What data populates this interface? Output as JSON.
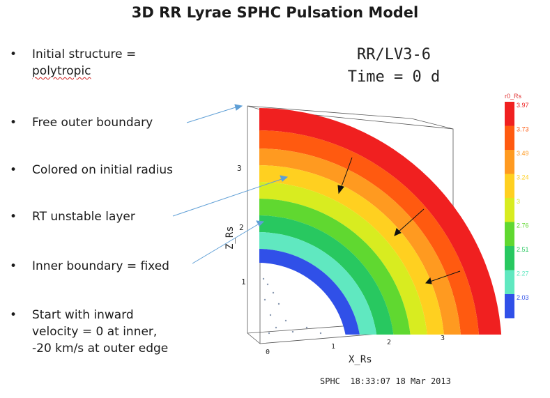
{
  "slide": {
    "title": "3D RR Lyrae SPHC Pulsation Model",
    "bullets": [
      {
        "marker": "•",
        "text": "Initial structure = ",
        "text_underlined": "polytropic"
      },
      {
        "marker": "•",
        "text": "Free outer boundary"
      },
      {
        "marker": "•",
        "text": "Colored on initial radius"
      },
      {
        "marker": "•",
        "text": "RT unstable layer"
      },
      {
        "marker": "•",
        "text": "Inner boundary = fixed"
      },
      {
        "marker": "•",
        "text_lines": [
          "Start with inward",
          "velocity = 0 at inner,",
          "-20 km/s at outer edge"
        ]
      }
    ]
  },
  "plot": {
    "header_line1": "RR/LV3-6",
    "header_line2": "Time = 0 d",
    "x_label": "X_Rs",
    "z_label": "Z_Rs",
    "x_ticks": [
      "0",
      "1",
      "2",
      "3"
    ],
    "z_ticks": [
      "1",
      "2",
      "3"
    ],
    "colorbar_title": "r0_Rs",
    "colorbar_labels": [
      "3.97",
      "3.73",
      "3.49",
      "3.24",
      "3",
      "2.76",
      "2.51",
      "2.27",
      "2.03"
    ],
    "colorbar_colors": [
      "#f02020",
      "#ff5a10",
      "#ff9a20",
      "#ffd020",
      "#d8ec20",
      "#60d830",
      "#28c860",
      "#60e8c0",
      "#3050e8"
    ],
    "footer": "SPHC  18:33:07 18 Mar 2013"
  }
}
